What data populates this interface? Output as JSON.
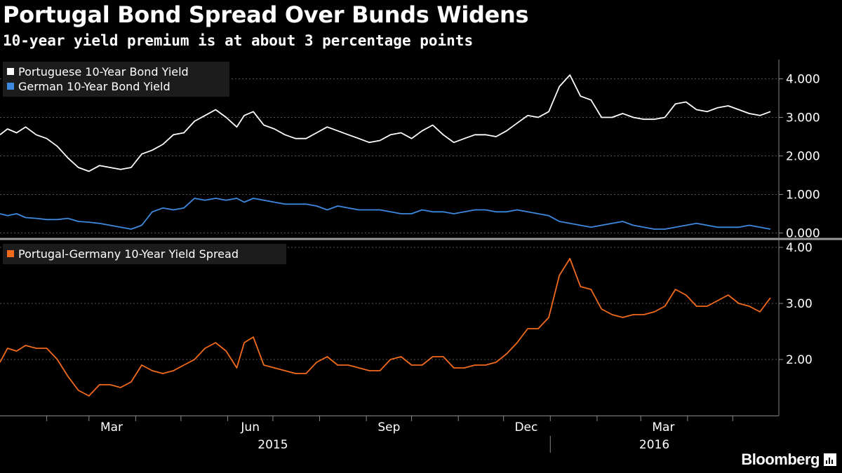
{
  "title": "Portugal Bond Spread Over Bunds Widens",
  "subtitle": "10-year yield premium is at about 3 percentage points",
  "brand": "Bloomberg",
  "brand_icon": "bloomberg-chart-icon",
  "colors": {
    "background": "#000000",
    "portugal": "#ffffff",
    "germany": "#3d8ae0",
    "spread": "#f26a1b",
    "grid": "#555555",
    "divider": "#9a9a9a"
  },
  "chart_data": [
    {
      "type": "line",
      "panel": "top",
      "legend_placement": "top-left",
      "grid": true,
      "ylim": [
        -0.1,
        4.5
      ],
      "y_ticks": [
        0.0,
        1.0,
        2.0,
        3.0,
        4.0
      ],
      "y_tick_labels": [
        "0.000",
        "1.000",
        "2.000",
        "3.000",
        "4.000"
      ],
      "series": [
        {
          "name": "Portuguese 10-Year Bond Yield",
          "x": [
            "2015-01-01",
            "2015-01-06",
            "2015-01-12",
            "2015-01-18",
            "2015-01-25",
            "2015-02-01",
            "2015-02-08",
            "2015-02-15",
            "2015-02-22",
            "2015-03-01",
            "2015-03-08",
            "2015-03-15",
            "2015-03-22",
            "2015-03-29",
            "2015-04-05",
            "2015-04-12",
            "2015-04-19",
            "2015-04-26",
            "2015-05-03",
            "2015-05-10",
            "2015-05-17",
            "2015-05-24",
            "2015-05-31",
            "2015-06-07",
            "2015-06-12",
            "2015-06-18",
            "2015-06-25",
            "2015-07-02",
            "2015-07-09",
            "2015-07-16",
            "2015-07-23",
            "2015-07-30",
            "2015-08-06",
            "2015-08-13",
            "2015-08-20",
            "2015-08-27",
            "2015-09-03",
            "2015-09-10",
            "2015-09-17",
            "2015-09-24",
            "2015-10-01",
            "2015-10-08",
            "2015-10-15",
            "2015-10-22",
            "2015-10-29",
            "2015-11-05",
            "2015-11-12",
            "2015-11-19",
            "2015-11-26",
            "2015-12-03",
            "2015-12-10",
            "2015-12-17",
            "2015-12-24",
            "2015-12-31",
            "2016-01-07",
            "2016-01-14",
            "2016-01-21",
            "2016-01-28",
            "2016-02-04",
            "2016-02-11",
            "2016-02-18",
            "2016-02-25",
            "2016-03-03",
            "2016-03-10",
            "2016-03-17",
            "2016-03-24",
            "2016-03-31",
            "2016-04-07",
            "2016-04-14",
            "2016-04-21",
            "2016-04-28",
            "2016-05-05",
            "2016-05-12",
            "2016-05-19",
            "2016-05-26"
          ],
          "values": [
            2.55,
            2.7,
            2.6,
            2.75,
            2.55,
            2.45,
            2.25,
            1.95,
            1.7,
            1.6,
            1.75,
            1.7,
            1.65,
            1.7,
            2.05,
            2.15,
            2.3,
            2.55,
            2.6,
            2.9,
            3.05,
            3.2,
            3.0,
            2.75,
            3.05,
            3.15,
            2.8,
            2.7,
            2.55,
            2.45,
            2.45,
            2.6,
            2.75,
            2.65,
            2.55,
            2.45,
            2.35,
            2.4,
            2.55,
            2.6,
            2.45,
            2.65,
            2.8,
            2.55,
            2.35,
            2.45,
            2.55,
            2.55,
            2.5,
            2.65,
            2.85,
            3.05,
            3.0,
            3.15,
            3.8,
            4.1,
            3.55,
            3.45,
            3.0,
            3.0,
            3.1,
            3.0,
            2.95,
            2.95,
            3.0,
            3.35,
            3.4,
            3.2,
            3.15,
            3.25,
            3.3,
            3.2,
            3.1,
            3.05,
            3.15
          ]
        },
        {
          "name": "German 10-Year Bond Yield",
          "x": [
            "2015-01-01",
            "2015-01-06",
            "2015-01-12",
            "2015-01-18",
            "2015-01-25",
            "2015-02-01",
            "2015-02-08",
            "2015-02-15",
            "2015-02-22",
            "2015-03-01",
            "2015-03-08",
            "2015-03-15",
            "2015-03-22",
            "2015-03-29",
            "2015-04-05",
            "2015-04-12",
            "2015-04-19",
            "2015-04-26",
            "2015-05-03",
            "2015-05-10",
            "2015-05-17",
            "2015-05-24",
            "2015-05-31",
            "2015-06-07",
            "2015-06-12",
            "2015-06-18",
            "2015-06-25",
            "2015-07-02",
            "2015-07-09",
            "2015-07-16",
            "2015-07-23",
            "2015-07-30",
            "2015-08-06",
            "2015-08-13",
            "2015-08-20",
            "2015-08-27",
            "2015-09-03",
            "2015-09-10",
            "2015-09-17",
            "2015-09-24",
            "2015-10-01",
            "2015-10-08",
            "2015-10-15",
            "2015-10-22",
            "2015-10-29",
            "2015-11-05",
            "2015-11-12",
            "2015-11-19",
            "2015-11-26",
            "2015-12-03",
            "2015-12-10",
            "2015-12-17",
            "2015-12-24",
            "2015-12-31",
            "2016-01-07",
            "2016-01-14",
            "2016-01-21",
            "2016-01-28",
            "2016-02-04",
            "2016-02-11",
            "2016-02-18",
            "2016-02-25",
            "2016-03-03",
            "2016-03-10",
            "2016-03-17",
            "2016-03-24",
            "2016-03-31",
            "2016-04-07",
            "2016-04-14",
            "2016-04-21",
            "2016-04-28",
            "2016-05-05",
            "2016-05-12",
            "2016-05-19",
            "2016-05-26"
          ],
          "values": [
            0.5,
            0.45,
            0.5,
            0.4,
            0.38,
            0.35,
            0.35,
            0.38,
            0.3,
            0.28,
            0.25,
            0.2,
            0.15,
            0.1,
            0.2,
            0.55,
            0.65,
            0.6,
            0.65,
            0.9,
            0.85,
            0.9,
            0.85,
            0.9,
            0.8,
            0.9,
            0.85,
            0.8,
            0.75,
            0.75,
            0.75,
            0.7,
            0.6,
            0.7,
            0.65,
            0.6,
            0.6,
            0.6,
            0.55,
            0.5,
            0.5,
            0.6,
            0.55,
            0.55,
            0.5,
            0.55,
            0.6,
            0.6,
            0.55,
            0.55,
            0.6,
            0.55,
            0.5,
            0.45,
            0.3,
            0.25,
            0.2,
            0.15,
            0.2,
            0.25,
            0.3,
            0.2,
            0.15,
            0.1,
            0.1,
            0.15,
            0.2,
            0.25,
            0.2,
            0.15,
            0.15,
            0.15,
            0.2,
            0.15,
            0.1
          ]
        }
      ]
    },
    {
      "type": "line",
      "panel": "bottom",
      "legend_placement": "top-left",
      "grid": true,
      "ylim": [
        1.0,
        4.1
      ],
      "y_ticks": [
        2.0,
        3.0,
        4.0
      ],
      "y_tick_labels": [
        "2.00",
        "3.00",
        "4.00"
      ],
      "series": [
        {
          "name": "Portugal-Germany 10-Year Yield Spread",
          "x": [
            "2015-01-01",
            "2015-01-06",
            "2015-01-12",
            "2015-01-18",
            "2015-01-25",
            "2015-02-01",
            "2015-02-08",
            "2015-02-15",
            "2015-02-22",
            "2015-03-01",
            "2015-03-08",
            "2015-03-15",
            "2015-03-22",
            "2015-03-29",
            "2015-04-05",
            "2015-04-12",
            "2015-04-19",
            "2015-04-26",
            "2015-05-03",
            "2015-05-10",
            "2015-05-17",
            "2015-05-24",
            "2015-05-31",
            "2015-06-07",
            "2015-06-12",
            "2015-06-18",
            "2015-06-25",
            "2015-07-02",
            "2015-07-09",
            "2015-07-16",
            "2015-07-23",
            "2015-07-30",
            "2015-08-06",
            "2015-08-13",
            "2015-08-20",
            "2015-08-27",
            "2015-09-03",
            "2015-09-10",
            "2015-09-17",
            "2015-09-24",
            "2015-10-01",
            "2015-10-08",
            "2015-10-15",
            "2015-10-22",
            "2015-10-29",
            "2015-11-05",
            "2015-11-12",
            "2015-11-19",
            "2015-11-26",
            "2015-12-03",
            "2015-12-10",
            "2015-12-17",
            "2015-12-24",
            "2015-12-31",
            "2016-01-07",
            "2016-01-14",
            "2016-01-21",
            "2016-01-28",
            "2016-02-04",
            "2016-02-11",
            "2016-02-18",
            "2016-02-25",
            "2016-03-03",
            "2016-03-10",
            "2016-03-17",
            "2016-03-24",
            "2016-03-31",
            "2016-04-07",
            "2016-04-14",
            "2016-04-21",
            "2016-04-28",
            "2016-05-05",
            "2016-05-12",
            "2016-05-19",
            "2016-05-26"
          ],
          "values": [
            1.95,
            2.2,
            2.15,
            2.25,
            2.2,
            2.2,
            2.0,
            1.7,
            1.45,
            1.35,
            1.55,
            1.55,
            1.5,
            1.6,
            1.9,
            1.8,
            1.75,
            1.8,
            1.9,
            2.0,
            2.2,
            2.3,
            2.15,
            1.85,
            2.3,
            2.4,
            1.9,
            1.85,
            1.8,
            1.75,
            1.75,
            1.95,
            2.05,
            1.9,
            1.9,
            1.85,
            1.8,
            1.8,
            2.0,
            2.05,
            1.9,
            1.9,
            2.05,
            2.05,
            1.85,
            1.85,
            1.9,
            1.9,
            1.95,
            2.1,
            2.3,
            2.55,
            2.55,
            2.75,
            3.5,
            3.8,
            3.3,
            3.25,
            2.9,
            2.8,
            2.75,
            2.8,
            2.8,
            2.85,
            2.95,
            3.25,
            3.15,
            2.95,
            2.95,
            3.05,
            3.15,
            3.0,
            2.95,
            2.85,
            3.1
          ]
        }
      ]
    }
  ],
  "x_axis": {
    "month_labels": [
      "Mar",
      "Jun",
      "Sep",
      "Dec",
      "Mar"
    ],
    "year_labels": [
      "2015",
      "2016"
    ]
  }
}
